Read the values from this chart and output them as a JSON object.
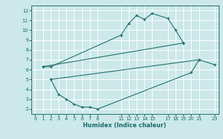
{
  "xlabel": "Humidex (Indice chaleur)",
  "ylabel": "",
  "bg_color": "#cce8e8",
  "grid_color": "#ffffff",
  "line_color": "#1a6b6b",
  "xlim": [
    -0.5,
    23.5
  ],
  "ylim": [
    1.5,
    12.5
  ],
  "xticks": [
    0,
    1,
    2,
    3,
    4,
    5,
    6,
    7,
    8,
    11,
    12,
    13,
    14,
    15,
    17,
    18,
    19,
    20,
    21,
    23
  ],
  "yticks": [
    2,
    3,
    4,
    5,
    6,
    7,
    8,
    9,
    10,
    11,
    12
  ],
  "line1_x": [
    1,
    2,
    11,
    12,
    13,
    14,
    15,
    17,
    18,
    19
  ],
  "line1_y": [
    6.3,
    6.3,
    9.5,
    10.7,
    11.5,
    11.1,
    11.7,
    11.2,
    10.0,
    8.7
  ],
  "line2_x": [
    1,
    19
  ],
  "line2_y": [
    6.3,
    8.7
  ],
  "line3_x": [
    2,
    21
  ],
  "line3_y": [
    5.0,
    7.0
  ],
  "line4_x": [
    2,
    3,
    4,
    5,
    6,
    7,
    8,
    20,
    21,
    23
  ],
  "line4_y": [
    5.0,
    3.5,
    3.0,
    2.5,
    2.2,
    2.2,
    2.0,
    5.7,
    7.0,
    6.5
  ]
}
